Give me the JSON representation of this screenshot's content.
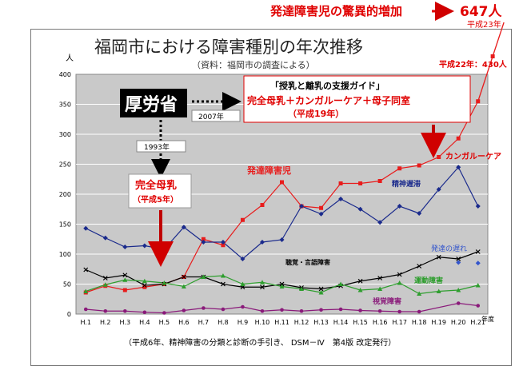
{
  "header": {
    "headline": "発達障害児の驚異的増加",
    "value": "647人",
    "era": "平成23年"
  },
  "chart_data": {
    "type": "line",
    "title": "福岡市における障害種別の年次推移",
    "subtitle": "（資料：福岡市の調査による）",
    "ylabel": "人",
    "xlabel": "年度",
    "ylim": [
      0,
      400
    ],
    "yticks": [
      0,
      50,
      100,
      150,
      200,
      250,
      300,
      350,
      400
    ],
    "categories": [
      "H.1",
      "H.2",
      "H.3",
      "H.4",
      "H.5",
      "H.6",
      "H.7",
      "H.8",
      "H.9",
      "H.10",
      "H.11",
      "H.12",
      "H.13",
      "H.14",
      "H.15",
      "H.16",
      "H.17",
      "H.18",
      "H.19",
      "H.20",
      "H.21"
    ],
    "series": [
      {
        "name": "発達障害児",
        "color": "#e81c1c",
        "marker": "square",
        "values": [
          36,
          47,
          40,
          45,
          50,
          62,
          125,
          115,
          157,
          182,
          220,
          180,
          177,
          218,
          218,
          222,
          243,
          248,
          262,
          293,
          355
        ]
      },
      {
        "name": "精神遅滞",
        "color": "#1a2a8c",
        "marker": "diamond",
        "values": [
          143,
          127,
          112,
          114,
          108,
          145,
          120,
          120,
          92,
          120,
          124,
          180,
          167,
          192,
          175,
          153,
          180,
          168,
          208,
          245,
          180
        ]
      },
      {
        "name": "聴覚・言語障害",
        "color": "#000000",
        "marker": "cross",
        "values": [
          74,
          60,
          65,
          48,
          50,
          62,
          62,
          50,
          45,
          45,
          50,
          44,
          42,
          47,
          55,
          60,
          66,
          80,
          95,
          92,
          104
        ]
      },
      {
        "name": "運動障害",
        "color": "#2e9e2e",
        "marker": "triangle",
        "values": [
          38,
          49,
          57,
          55,
          52,
          46,
          62,
          64,
          50,
          53,
          46,
          42,
          36,
          50,
          40,
          42,
          52,
          34,
          38,
          40,
          48
        ]
      },
      {
        "name": "視覚障害",
        "color": "#8a1a7a",
        "marker": "circle",
        "values": [
          8,
          5,
          5,
          3,
          2,
          6,
          10,
          8,
          12,
          5,
          7,
          5,
          7,
          8,
          6,
          5,
          4,
          4,
          null,
          18,
          14
        ]
      },
      {
        "name": "発達の遅れ",
        "color": "#3355cc",
        "marker": "diamond",
        "values": [
          null,
          null,
          null,
          null,
          null,
          null,
          null,
          null,
          null,
          null,
          null,
          null,
          null,
          null,
          null,
          null,
          null,
          null,
          null,
          86,
          85
        ]
      }
    ],
    "extension": {
      "label": "平成22年：430人",
      "value": 430
    },
    "grid": true
  },
  "annotations": {
    "mhlw": "厚労省",
    "y1993": "1993年",
    "y2007": "2007年",
    "exclusive": "完全母乳",
    "exclusive_year": "（平成5年）",
    "guide_title": "「授乳と離乳の支援ガイド」",
    "guide_body": "完全母乳＋カンガルーケア＋母子同室",
    "guide_year": "（平成19年）",
    "kangaroo": "カンガルーケア",
    "footer": "（平成6年、精神障害の分類と診断の手引き、 DSM－Ⅳ　第4版 改定発行）"
  }
}
